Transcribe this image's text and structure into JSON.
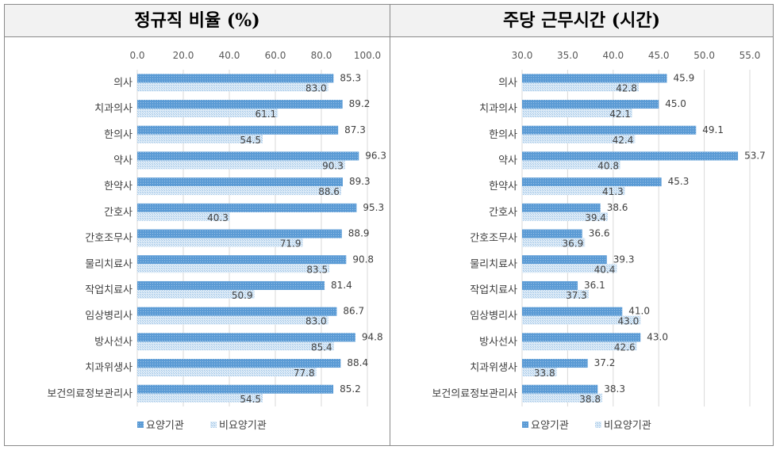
{
  "chart_data": [
    {
      "type": "bar",
      "orientation": "horizontal",
      "title": "정규직 비율 (%)",
      "xlim": [
        0,
        100
      ],
      "ticks": [
        "0.0",
        "20.0",
        "40.0",
        "60.0",
        "80.0",
        "100.0"
      ],
      "grid": true,
      "legend": "bottom",
      "categories": [
        "의사",
        "치과의사",
        "한의사",
        "약사",
        "한약사",
        "간호사",
        "간호조무사",
        "물리치료사",
        "작업치료사",
        "임상병리사",
        "방사선사",
        "치과위생사",
        "보건의료정보관리사"
      ],
      "series": [
        {
          "name": "요양기관",
          "color": "#5b9bd5",
          "values": [
            85.3,
            89.2,
            87.3,
            96.3,
            89.3,
            95.3,
            88.9,
            90.8,
            81.4,
            86.7,
            94.8,
            88.4,
            85.2
          ]
        },
        {
          "name": "비요양기관",
          "color": "#bdd7ee",
          "values": [
            83.0,
            61.1,
            54.5,
            90.3,
            88.6,
            40.3,
            71.9,
            83.5,
            50.9,
            83.0,
            85.4,
            77.8,
            54.5
          ]
        }
      ]
    },
    {
      "type": "bar",
      "orientation": "horizontal",
      "title": "주당 근무시간 (시간)",
      "xlim": [
        30,
        55
      ],
      "ticks": [
        "30.0",
        "35.0",
        "40.0",
        "45.0",
        "50.0",
        "55.0"
      ],
      "grid": true,
      "legend": "bottom",
      "categories": [
        "의사",
        "치과의사",
        "한의사",
        "약사",
        "한약사",
        "간호사",
        "간호조무사",
        "물리치료사",
        "작업치료사",
        "임상병리사",
        "방사선사",
        "치과위생사",
        "보건의료정보관리사"
      ],
      "series": [
        {
          "name": "요양기관",
          "color": "#5b9bd5",
          "values": [
            45.9,
            45.0,
            49.1,
            53.7,
            45.3,
            38.6,
            36.6,
            39.3,
            36.1,
            41.0,
            43.0,
            37.2,
            38.3
          ]
        },
        {
          "name": "비요양기관",
          "color": "#bdd7ee",
          "values": [
            42.8,
            42.1,
            42.4,
            40.8,
            41.3,
            39.4,
            36.9,
            40.4,
            37.3,
            43.0,
            42.6,
            33.8,
            38.8
          ]
        }
      ]
    }
  ]
}
